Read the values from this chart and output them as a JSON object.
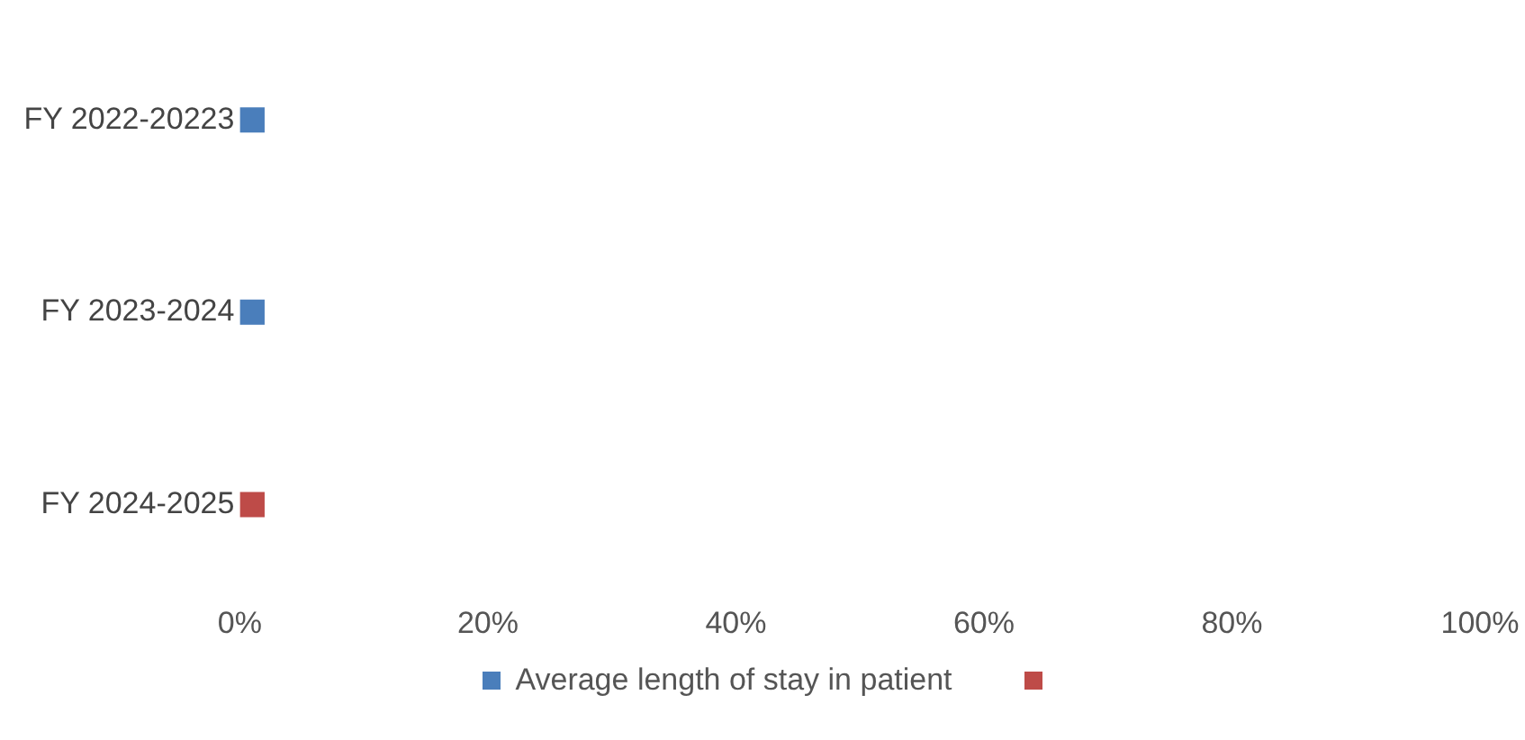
{
  "chart_data": {
    "type": "bar",
    "orientation": "horizontal",
    "stacked": true,
    "categories": [
      "FY 2022-20223",
      "FY 2023-2024",
      "FY 2024-2025"
    ],
    "series": [
      {
        "name": "Average length of stay in patient",
        "color": "#4a7ebb",
        "values": [
          2,
          2,
          null
        ]
      },
      {
        "color": "#be4b48",
        "values": [
          null,
          null,
          2
        ]
      }
    ],
    "xlim": [
      0,
      100
    ],
    "xticks": [
      {
        "value": 0,
        "label": "0%"
      },
      {
        "value": 20,
        "label": "20%"
      },
      {
        "value": 40,
        "label": "40%"
      },
      {
        "value": 60,
        "label": "60%"
      },
      {
        "value": 80,
        "label": "80%"
      },
      {
        "value": 100,
        "label": "100%"
      }
    ],
    "grid": false,
    "legend": "bottom"
  }
}
